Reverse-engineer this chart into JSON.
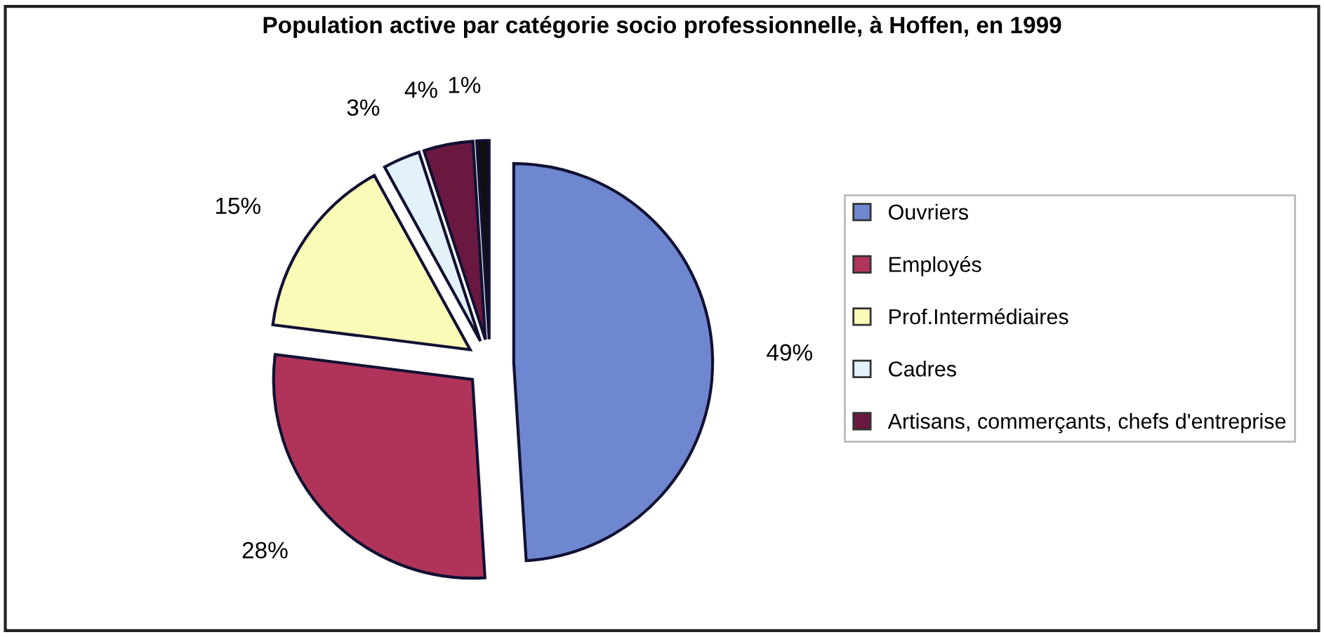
{
  "chart_data": {
    "type": "pie",
    "title": "Population active par catégorie socio professionnelle, à Hoffen, en 1999",
    "categories": [
      "Ouvriers",
      "Employés",
      "Prof.Intermédiaires",
      "Cadres",
      "Artisans, commerçants, chefs d'entreprise",
      null
    ],
    "values": [
      49,
      28,
      15,
      3,
      4,
      1
    ],
    "colors": [
      "#6f86d0",
      "#b0345a",
      "#fbfbb8",
      "#e2f2f8",
      "#6a1840",
      "#101010"
    ],
    "value_labels": [
      "49%",
      "28%",
      "15%",
      "3%",
      "4%",
      "1%"
    ],
    "legend": "right"
  }
}
